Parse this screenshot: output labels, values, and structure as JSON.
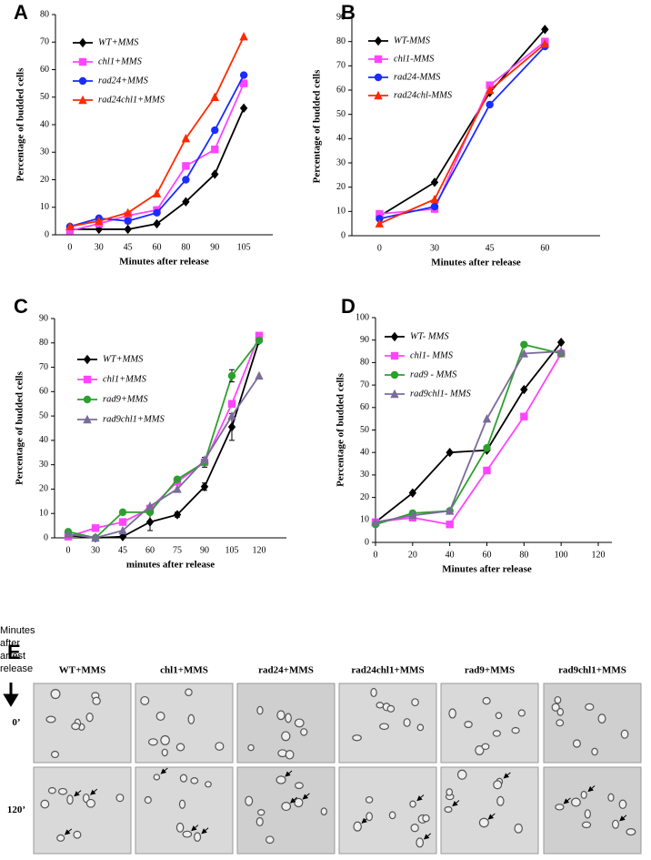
{
  "chart_data": [
    {
      "type": "line",
      "label": "A",
      "y_label": "Percentage of budded cells",
      "x_label": "Minutes after release",
      "categories": [
        "0",
        "30",
        "45",
        "60",
        "80",
        "90",
        "105"
      ],
      "ylim": [
        0,
        80
      ],
      "yticks": [
        0,
        10,
        20,
        30,
        40,
        50,
        60,
        70,
        80
      ],
      "legend": "upper left",
      "series": [
        {
          "name": "WT+MMS",
          "color": "#000000",
          "marker": "diamond",
          "values": [
            2,
            2,
            2,
            4,
            12,
            22,
            46
          ]
        },
        {
          "name": "chl1+MMS",
          "color": "#ff44ff",
          "marker": "square",
          "values": [
            1.5,
            4,
            7,
            9,
            25,
            31,
            55
          ]
        },
        {
          "name": "rad24+MMS",
          "color": "#1a2cff",
          "marker": "circle",
          "values": [
            3,
            6,
            5,
            8,
            20,
            38,
            58
          ]
        },
        {
          "name": "rad24chl1+MMS",
          "color": "#ff2a00",
          "marker": "triangle",
          "values": [
            3,
            5,
            8,
            15,
            35,
            50,
            72
          ]
        }
      ]
    },
    {
      "type": "line",
      "label": "B",
      "y_label": "Percentage of budded cells",
      "x_label": "Minutes after release",
      "categories": [
        "0",
        "30",
        "45",
        "60"
      ],
      "ylim": [
        0,
        90
      ],
      "yticks": [
        0,
        10,
        20,
        30,
        40,
        50,
        60,
        70,
        80,
        90
      ],
      "legend": "upper left",
      "series": [
        {
          "name": "WT-MMS",
          "color": "#000000",
          "marker": "diamond",
          "values": [
            8,
            22,
            59,
            85
          ]
        },
        {
          "name": "chl1-MMS",
          "color": "#ff44ff",
          "marker": "square",
          "values": [
            9,
            11,
            62,
            80
          ]
        },
        {
          "name": "rad24-MMS",
          "color": "#1a2cff",
          "marker": "circle",
          "values": [
            7,
            12,
            54,
            78
          ]
        },
        {
          "name": "rad24chl-MMS",
          "color": "#ff2a00",
          "marker": "triangle",
          "values": [
            5,
            15,
            60,
            79
          ]
        }
      ]
    },
    {
      "type": "line",
      "label": "C",
      "y_label": "Percentage of budded cells",
      "x_label": "minutes after release",
      "categories": [
        "0",
        "30",
        "45",
        "60",
        "75",
        "90",
        "105",
        "120"
      ],
      "ylim": [
        0,
        90
      ],
      "yticks": [
        0,
        10,
        20,
        30,
        40,
        50,
        60,
        70,
        80,
        90
      ],
      "legend": "upper left",
      "series": [
        {
          "name": "WT+MMS",
          "color": "#000000",
          "marker": "diamond",
          "values": [
            1,
            0,
            0.5,
            6.5,
            9.5,
            21,
            45.5,
            81
          ],
          "errors": [
            0,
            0,
            0,
            3.5,
            1,
            1.5,
            5.5,
            0
          ]
        },
        {
          "name": "chl1+MMS",
          "color": "#ff44ff",
          "marker": "square",
          "values": [
            0.5,
            4,
            6.5,
            12,
            23,
            31,
            55,
            83
          ]
        },
        {
          "name": "rad9+MMS",
          "color": "#2ca02c",
          "marker": "circle",
          "values": [
            2.5,
            0,
            10.5,
            10.5,
            24,
            31,
            66.5,
            81
          ],
          "errors": [
            0,
            0,
            0,
            0,
            0,
            2,
            2.5,
            0
          ]
        },
        {
          "name": "rad9chl1+MMS",
          "color": "#7b6b9b",
          "marker": "triangle",
          "values": [
            1.5,
            0,
            3,
            13,
            20,
            32,
            50,
            66.5
          ]
        }
      ]
    },
    {
      "type": "line",
      "label": "D",
      "y_label": "Percentage of budded cells",
      "x_label": "Minutes after release",
      "x": [
        0,
        20,
        40,
        60,
        80,
        100
      ],
      "xlim": [
        0,
        120
      ],
      "xticks": [
        0,
        20,
        40,
        60,
        80,
        100,
        120
      ],
      "ylim": [
        0,
        100
      ],
      "yticks": [
        0,
        10,
        20,
        30,
        40,
        50,
        60,
        70,
        80,
        90,
        100
      ],
      "legend": "upper left",
      "series": [
        {
          "name": "WT- MMS",
          "color": "#000000",
          "marker": "diamond",
          "values": [
            9,
            22,
            40,
            41,
            68,
            89
          ]
        },
        {
          "name": "chl1- MMS",
          "color": "#ff44ff",
          "marker": "square",
          "values": [
            9,
            11,
            8,
            32,
            56,
            84
          ]
        },
        {
          "name": "rad9 - MMS",
          "color": "#2ca02c",
          "marker": "circle",
          "values": [
            8,
            13,
            14,
            42,
            88,
            84
          ]
        },
        {
          "name": "rad9chl1- MMS",
          "color": "#7b6b9b",
          "marker": "triangle",
          "values": [
            9,
            12,
            14,
            55,
            84,
            85
          ]
        }
      ]
    }
  ],
  "panel_e": {
    "label": "E",
    "caption_lines": [
      "Minutes",
      "after",
      "arrest",
      "release"
    ],
    "columns": [
      "WT+MMS",
      "chl1+MMS",
      "rad24+MMS",
      "rad24chl1+MMS",
      "rad9+MMS",
      "rad9chl1+MMS"
    ],
    "rows": [
      "0’",
      "120’"
    ]
  }
}
